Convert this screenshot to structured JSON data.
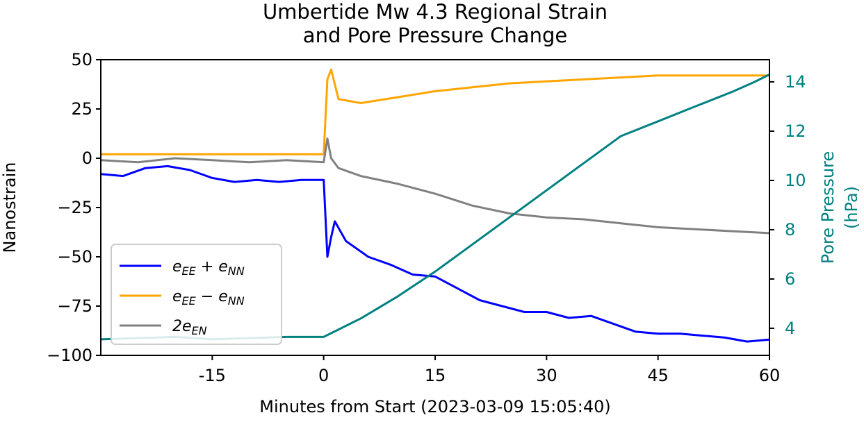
{
  "chart_data": {
    "type": "line",
    "title": [
      "Umbertide Mw 4.3 Regional Strain",
      "and Pore Pressure Change"
    ],
    "xlabel": "Minutes from Start (2023-03-09 15:05:40)",
    "ylabel": "Nanostrain",
    "y2label": [
      "Pore Pressure",
      "(hPa)"
    ],
    "xlim": [
      -30,
      60
    ],
    "ylim": [
      -100,
      50
    ],
    "y2lim": [
      2.9,
      14.9
    ],
    "x_ticks": [
      -15,
      0,
      15,
      30,
      45,
      60
    ],
    "x_tick_labels": [
      "-15",
      "0",
      "15",
      "30",
      "45",
      "60"
    ],
    "y_ticks": [
      50,
      25,
      0,
      -25,
      -50,
      -75,
      -100
    ],
    "y_tick_labels": [
      "50",
      "25",
      "0",
      "−25",
      "−50",
      "−75",
      "−100"
    ],
    "y2_ticks": [
      4,
      6,
      8,
      10,
      12,
      14
    ],
    "y2_tick_labels": [
      "4",
      "6",
      "8",
      "10",
      "12",
      "14"
    ],
    "grid": false,
    "legend_position": "lower-left",
    "series": [
      {
        "name": "e_EE + e_NN",
        "axis": "left",
        "color": "#0000ff",
        "x": [
          -30,
          -27,
          -24,
          -21,
          -18,
          -15,
          -12,
          -9,
          -6,
          -3,
          0,
          0.5,
          1,
          1.5,
          3,
          6,
          9,
          12,
          15,
          18,
          21,
          24,
          27,
          30,
          33,
          36,
          39,
          42,
          45,
          48,
          51,
          54,
          57,
          60
        ],
        "y": [
          -8,
          -9,
          -5,
          -4,
          -6,
          -10,
          -12,
          -11,
          -12,
          -11,
          -11,
          -50,
          -40,
          -32,
          -42,
          -50,
          -54,
          -59,
          -60,
          -66,
          -72,
          -75,
          -78,
          -78,
          -81,
          -80,
          -84,
          -88,
          -89,
          -89,
          -90,
          -91,
          -93,
          -92
        ]
      },
      {
        "name": "e_EE − e_NN",
        "axis": "left",
        "color": "#ffa500",
        "x": [
          -30,
          -20,
          -10,
          0,
          0.5,
          1,
          2,
          5,
          10,
          15,
          20,
          25,
          30,
          35,
          40,
          45,
          50,
          55,
          60
        ],
        "y": [
          2,
          2,
          2,
          2,
          40,
          45,
          30,
          28,
          31,
          34,
          36,
          38,
          39,
          40,
          41,
          42,
          42,
          42,
          42
        ]
      },
      {
        "name": "2e_EN",
        "axis": "left",
        "color": "#808080",
        "x": [
          -30,
          -25,
          -20,
          -15,
          -10,
          -5,
          0,
          0.5,
          1,
          2,
          5,
          10,
          15,
          20,
          25,
          30,
          35,
          40,
          45,
          50,
          55,
          60
        ],
        "y": [
          -1,
          -2,
          0,
          -1,
          -2,
          -1,
          -2,
          10,
          0,
          -5,
          -9,
          -13,
          -18,
          -24,
          -28,
          -30,
          -31,
          -33,
          -35,
          -36,
          -37,
          -38
        ]
      },
      {
        "name": "Pore Pressure",
        "axis": "right",
        "color": "#008080",
        "x": [
          -30,
          -25,
          -20,
          -15,
          -10,
          -5,
          0,
          5,
          10,
          15,
          20,
          25,
          30,
          35,
          40,
          45,
          50,
          55,
          58,
          60
        ],
        "y": [
          3.55,
          3.6,
          3.65,
          3.55,
          3.6,
          3.65,
          3.65,
          4.4,
          5.3,
          6.3,
          7.4,
          8.5,
          9.6,
          10.7,
          11.8,
          12.4,
          13.0,
          13.6,
          14.0,
          14.3
        ]
      }
    ]
  }
}
